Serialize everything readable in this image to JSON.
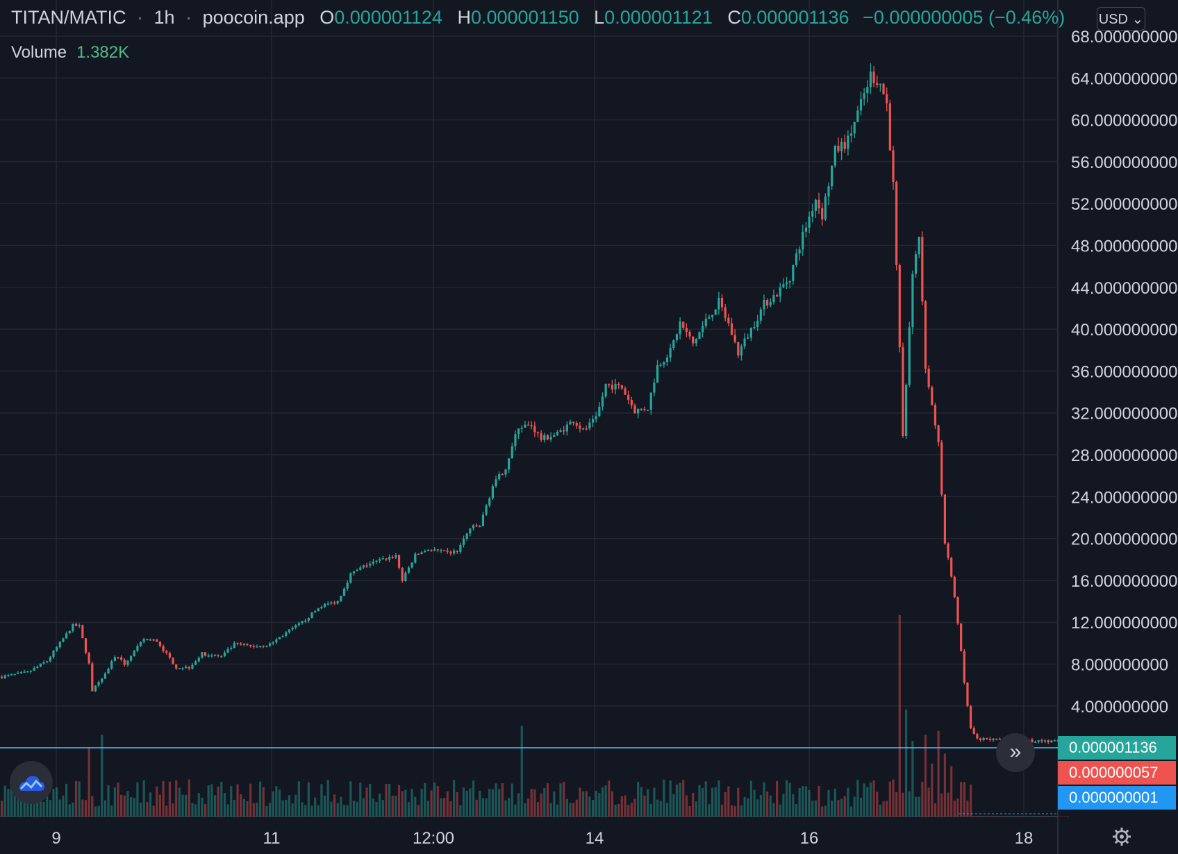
{
  "header": {
    "pair": "TITAN/MATIC",
    "interval": "1h",
    "source": "poocoin.app",
    "ohlc": [
      {
        "key": "O",
        "value": "0.000001124"
      },
      {
        "key": "H",
        "value": "0.000001150"
      },
      {
        "key": "L",
        "value": "0.000001121"
      },
      {
        "key": "C",
        "value": "0.000001136"
      }
    ],
    "change": "−0.000000005 (−0.46%)"
  },
  "volume_legend": {
    "label": "Volume",
    "value": "1.382K"
  },
  "currency_button": "USD",
  "price_tags": [
    {
      "text": "0.000001136",
      "color": "#26a69a"
    },
    {
      "text": "0.000000057",
      "color": "#ef5350"
    },
    {
      "text": "0.000000001",
      "color": "#2196f3"
    }
  ],
  "icons": {
    "scroll": "double-chevron-right-icon",
    "logo": "tradingview-cloud-icon",
    "settings": "gear-icon"
  },
  "colors": {
    "up": "#26a69a",
    "down": "#ef5350",
    "background": "#131722",
    "grid": "#242733",
    "last_price_line": "#4fc3f7"
  },
  "chart_data": {
    "type": "candlestick",
    "y_ticks": [
      "68.000000000",
      "64.000000000",
      "60.000000000",
      "56.000000000",
      "52.000000000",
      "48.000000000",
      "44.000000000",
      "40.000000000",
      "36.000000000",
      "32.000000000",
      "28.000000000",
      "24.000000000",
      "20.000000000",
      "16.000000000",
      "12.000000000",
      "8.000000000",
      "4.000000000"
    ],
    "y_range": [
      -4,
      68
    ],
    "x_ticks": [
      "9",
      "11",
      "12:00",
      "14",
      "16",
      "18"
    ],
    "grid": true,
    "trend_anchors": [
      [
        0,
        6.8
      ],
      [
        8,
        7.2
      ],
      [
        14,
        8.3
      ],
      [
        22,
        11.7
      ],
      [
        24,
        11.6
      ],
      [
        27,
        8.0
      ],
      [
        28,
        5.5
      ],
      [
        31,
        6.5
      ],
      [
        35,
        8.8
      ],
      [
        38,
        8.0
      ],
      [
        44,
        10.4
      ],
      [
        48,
        10.2
      ],
      [
        54,
        7.7
      ],
      [
        58,
        7.7
      ],
      [
        62,
        9.0
      ],
      [
        68,
        8.7
      ],
      [
        72,
        9.9
      ],
      [
        78,
        9.7
      ],
      [
        83,
        9.9
      ],
      [
        88,
        11.0
      ],
      [
        93,
        12.0
      ],
      [
        99,
        13.6
      ],
      [
        104,
        14.0
      ],
      [
        108,
        16.6
      ],
      [
        113,
        17.5
      ],
      [
        118,
        18.0
      ],
      [
        122,
        18.4
      ],
      [
        124,
        16.0
      ],
      [
        128,
        18.4
      ],
      [
        132,
        19.0
      ],
      [
        138,
        18.6
      ],
      [
        141,
        18.8
      ],
      [
        145,
        21.0
      ],
      [
        148,
        21.2
      ],
      [
        152,
        25.0
      ],
      [
        156,
        26.8
      ],
      [
        160,
        30.7
      ],
      [
        164,
        30.8
      ],
      [
        167,
        29.5
      ],
      [
        172,
        30.0
      ],
      [
        177,
        31.3
      ],
      [
        180,
        30.3
      ],
      [
        184,
        31.4
      ],
      [
        187,
        34.7
      ],
      [
        192,
        34.4
      ],
      [
        196,
        32.2
      ],
      [
        200,
        32.5
      ],
      [
        203,
        36.5
      ],
      [
        207,
        37.9
      ],
      [
        210,
        40.6
      ],
      [
        214,
        38.6
      ],
      [
        218,
        40.8
      ],
      [
        222,
        42.6
      ],
      [
        225,
        40.5
      ],
      [
        228,
        37.7
      ],
      [
        232,
        40.0
      ],
      [
        236,
        42.4
      ],
      [
        240,
        43.4
      ],
      [
        244,
        45.0
      ],
      [
        248,
        49.0
      ],
      [
        252,
        52.5
      ],
      [
        254,
        50.9
      ],
      [
        258,
        57.0
      ],
      [
        262,
        58.0
      ],
      [
        266,
        61.5
      ],
      [
        269,
        64.3
      ],
      [
        272,
        63.5
      ],
      [
        274,
        61.5
      ],
      [
        276,
        53.7
      ],
      [
        279,
        30.0
      ],
      [
        282,
        45.0
      ],
      [
        284,
        49.0
      ],
      [
        286,
        36.5
      ],
      [
        290,
        29.0
      ],
      [
        292,
        19.5
      ],
      [
        294,
        16.5
      ],
      [
        296,
        12.0
      ],
      [
        298,
        6.2
      ],
      [
        300,
        1.8
      ],
      [
        302,
        0.8
      ],
      [
        330,
        0.6
      ]
    ],
    "candle_count": 331,
    "volume_peaks": [
      [
        27,
        5.5
      ],
      [
        31,
        6.5
      ],
      [
        161,
        7.2
      ],
      [
        266,
        1.5
      ],
      [
        278,
        16.0
      ],
      [
        280,
        8.5
      ],
      [
        282,
        6.0
      ],
      [
        286,
        6.5
      ],
      [
        288,
        4.2
      ],
      [
        290,
        6.8
      ],
      [
        292,
        5.0
      ],
      [
        294,
        4.0
      ]
    ]
  }
}
